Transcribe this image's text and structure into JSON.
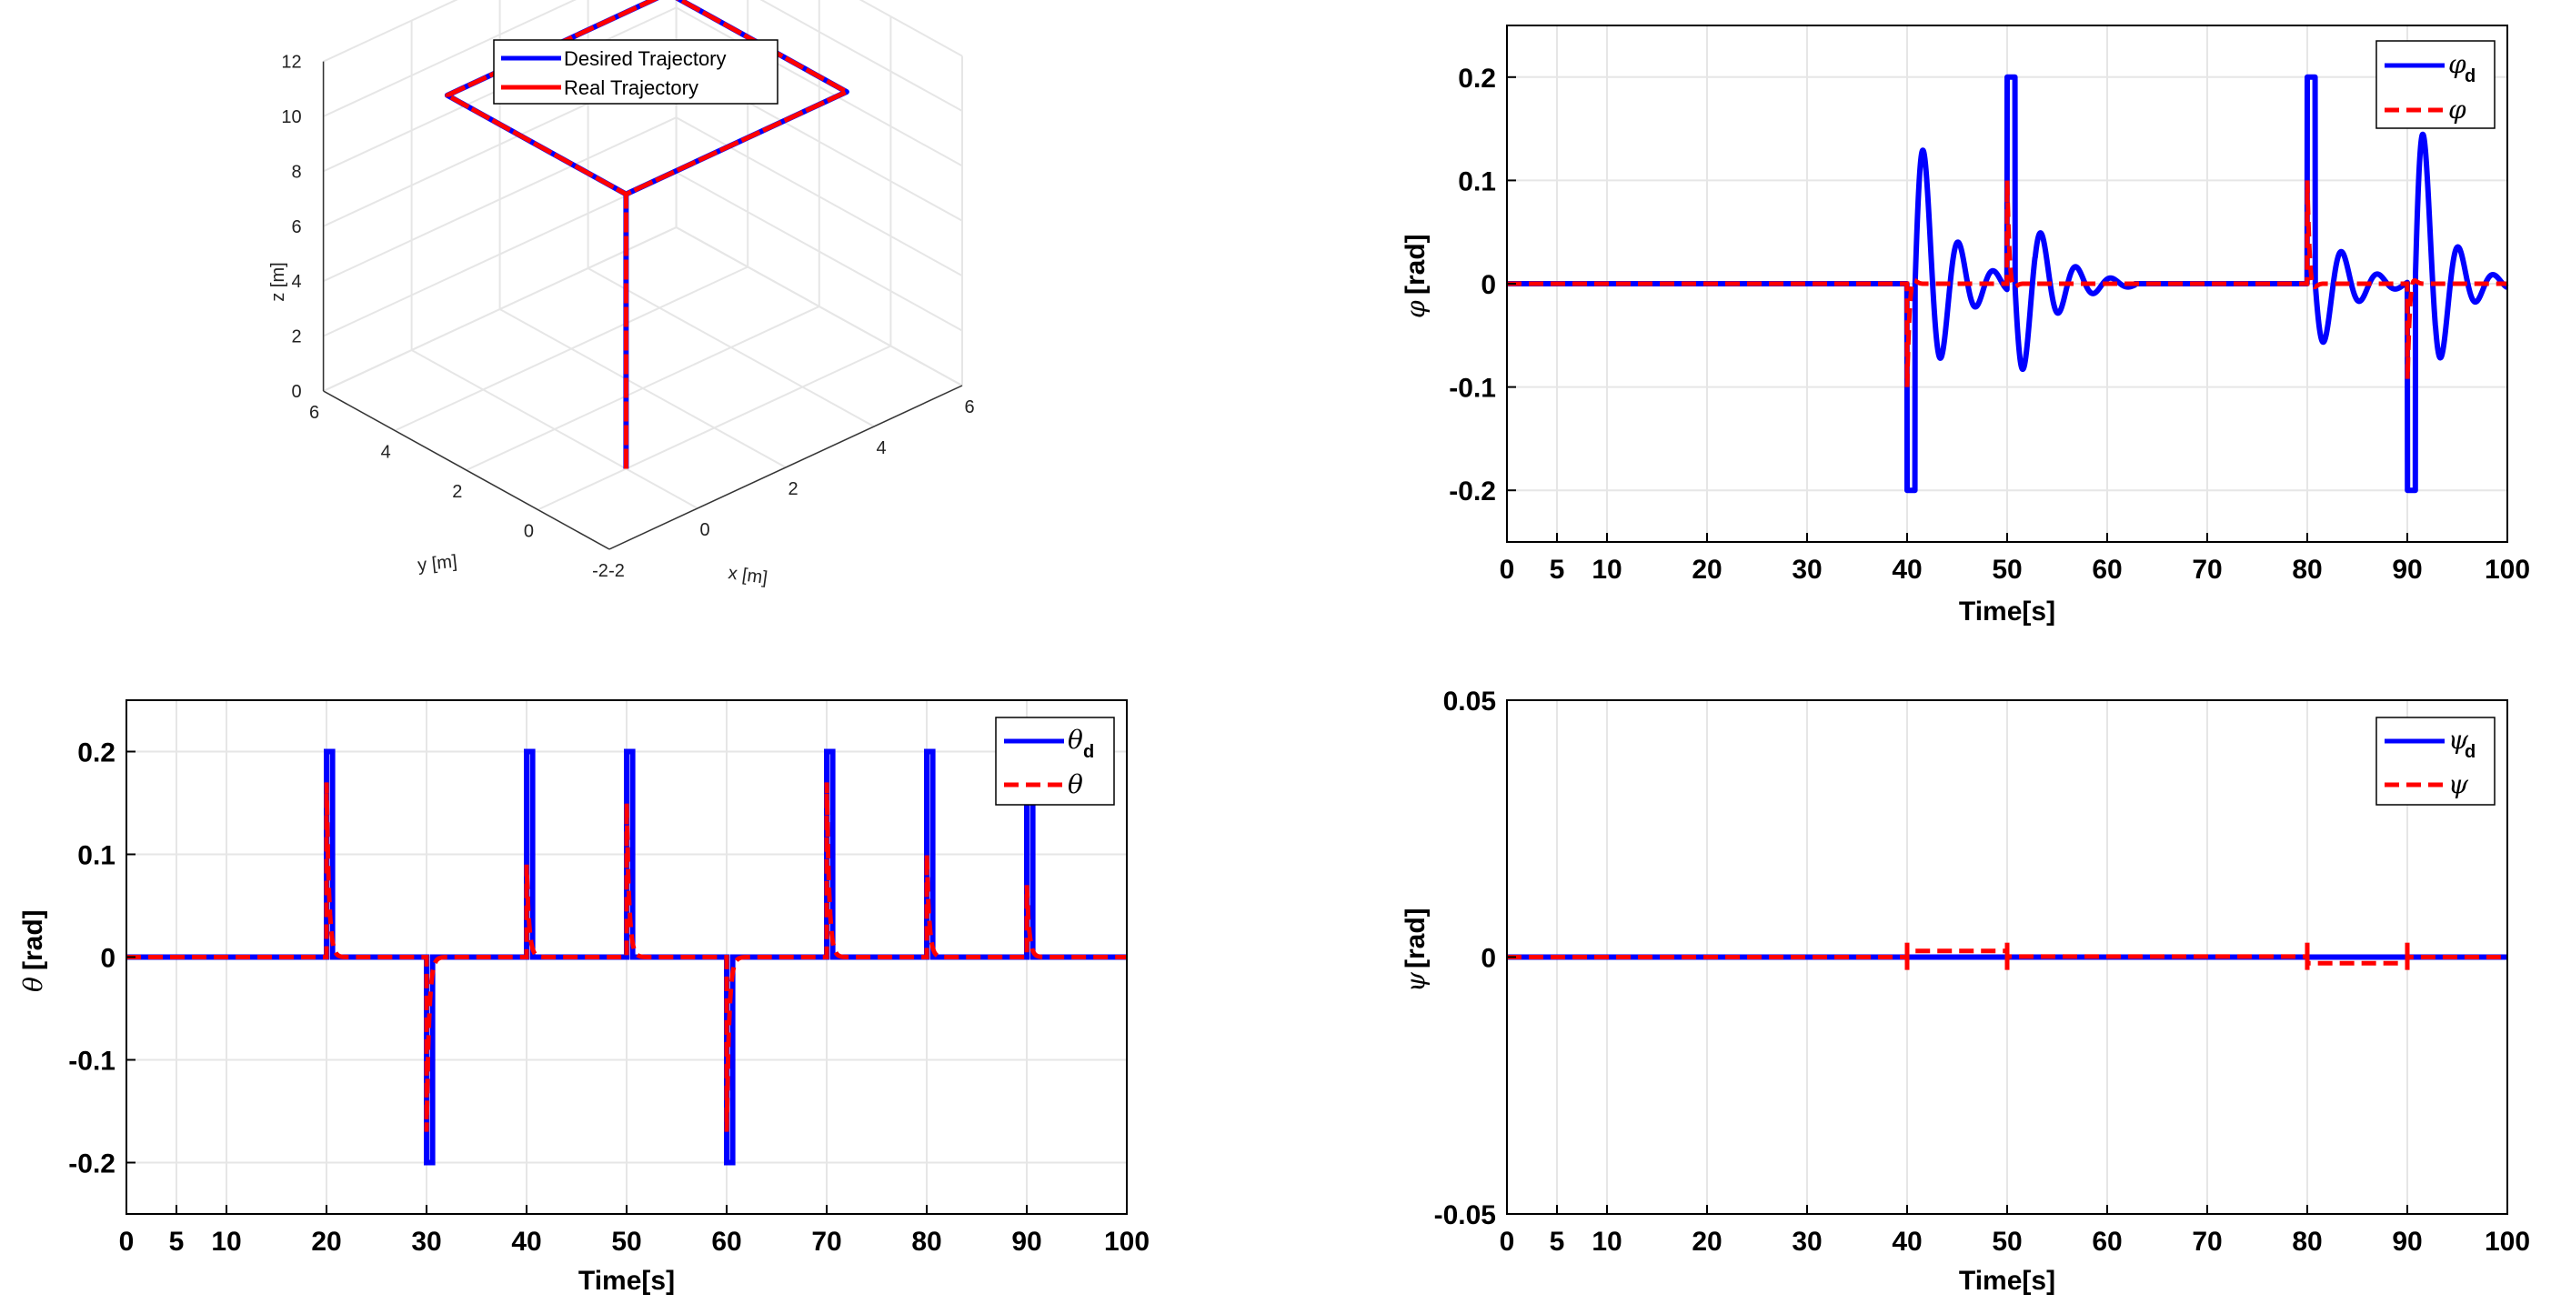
{
  "chart_data": [
    {
      "id": "trajectory3d",
      "type": "line3d",
      "legend": [
        "Desired Trajectory",
        "Real Trajectory"
      ],
      "xlabel": "x [m]",
      "ylabel": "y [m]",
      "zlabel": "z [m]",
      "xlim": [
        -2,
        6
      ],
      "ylim": [
        -2,
        6
      ],
      "zlim": [
        0,
        12
      ],
      "xticks": [
        "-2",
        "0",
        "2",
        "4",
        "6"
      ],
      "yticks": [
        "-2",
        "0",
        "2",
        "4",
        "6"
      ],
      "zticks": [
        "0",
        "2",
        "4",
        "6",
        "8",
        "10",
        "12"
      ],
      "grid": true,
      "desired_path": [
        [
          0,
          0,
          0
        ],
        [
          0,
          0,
          10
        ],
        [
          5,
          0,
          10
        ],
        [
          5,
          5,
          10
        ],
        [
          0,
          5,
          10
        ],
        [
          0,
          0,
          10
        ]
      ],
      "real_path": [
        [
          0,
          0,
          0
        ],
        [
          0,
          0,
          10
        ],
        [
          5,
          0,
          10
        ],
        [
          5,
          5,
          10
        ],
        [
          0,
          5,
          10
        ],
        [
          0,
          0,
          10
        ]
      ],
      "colors": {
        "desired": "#0000ff",
        "real": "#ff0000"
      }
    },
    {
      "id": "phi",
      "type": "line",
      "ylabel": "[rad]",
      "ylabel_symbol": "φ",
      "xlabel": "Time[s]",
      "xlim": [
        0,
        100
      ],
      "ylim": [
        -0.25,
        0.25
      ],
      "xticks": [
        "0",
        "5",
        "10",
        "20",
        "30",
        "40",
        "50",
        "60",
        "70",
        "80",
        "90",
        "100"
      ],
      "yticks": [
        "0.2",
        "0.1",
        "0",
        "-0.1",
        "-0.2"
      ],
      "legend": [
        {
          "symbol": "φ",
          "sub": "d",
          "style": "solid"
        },
        {
          "symbol": "φ",
          "sub": "",
          "style": "dashed"
        }
      ],
      "events": [
        40,
        50,
        80,
        90
      ],
      "sign": [
        -1,
        1,
        1,
        -1
      ],
      "osc_amp": [
        0.17,
        -0.11,
        -0.075,
        0.2
      ],
      "osc_period": [
        3.5,
        3.5,
        3.6,
        3.5
      ],
      "osc_decay": [
        3.0,
        3.2,
        3.0,
        2.5
      ],
      "real_amp": 0.1,
      "grid": true
    },
    {
      "id": "theta",
      "type": "line",
      "ylabel": "[rad]",
      "ylabel_symbol": "θ",
      "xlabel": "Time[s]",
      "xlim": [
        0,
        100
      ],
      "ylim": [
        -0.25,
        0.25
      ],
      "xticks": [
        "0",
        "5",
        "10",
        "20",
        "30",
        "40",
        "50",
        "60",
        "70",
        "80",
        "90",
        "100"
      ],
      "yticks": [
        "0.2",
        "0.1",
        "0",
        "-0.1",
        "-0.2"
      ],
      "legend": [
        {
          "symbol": "θ",
          "sub": "d",
          "style": "solid"
        },
        {
          "symbol": "θ",
          "sub": "",
          "style": "dashed"
        }
      ],
      "events": [
        20,
        30,
        40,
        50,
        60,
        70,
        80,
        90
      ],
      "sign": [
        1,
        -1,
        1,
        1,
        -1,
        1,
        1,
        1
      ],
      "real_peak": [
        0.17,
        -0.17,
        0.09,
        0.15,
        -0.17,
        0.17,
        0.1,
        0.07
      ],
      "grid": true
    },
    {
      "id": "psi",
      "type": "line",
      "ylabel": "[rad]",
      "ylabel_symbol": "ψ",
      "xlabel": "Time[s]",
      "xlim": [
        0,
        100
      ],
      "ylim": [
        -0.05,
        0.05
      ],
      "xticks": [
        "0",
        "5",
        "10",
        "20",
        "30",
        "40",
        "50",
        "60",
        "70",
        "80",
        "90",
        "100"
      ],
      "yticks": [
        "0.05",
        "0",
        "-0.05"
      ],
      "legend": [
        {
          "symbol": "ψ",
          "sub": "d",
          "style": "solid"
        },
        {
          "symbol": "ψ",
          "sub": "",
          "style": "dashed"
        }
      ],
      "real_segments": [
        [
          0,
          40,
          0
        ],
        [
          40,
          50,
          0.0012
        ],
        [
          50,
          80,
          0.0001
        ],
        [
          80,
          90,
          -0.0012
        ],
        [
          90,
          100,
          0
        ]
      ],
      "grid": true
    }
  ]
}
